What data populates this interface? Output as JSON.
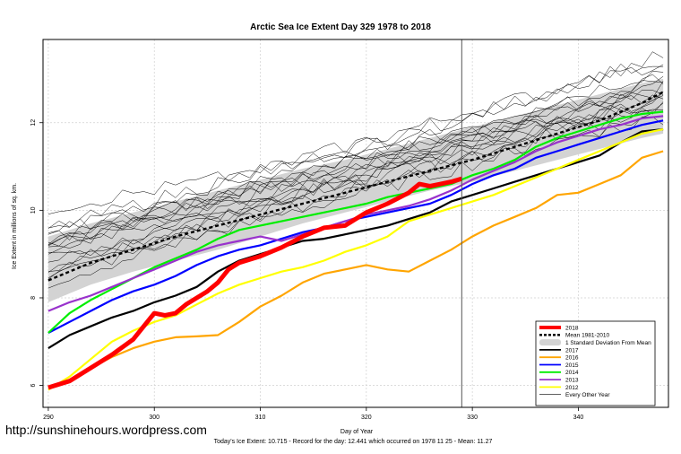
{
  "chart_data": {
    "type": "line",
    "title": "Arctic Sea Ice Extent Day 329 1978 to 2018",
    "xlabel": "Day of Year",
    "ylabel": "Ice Extent in millions of sq. km.",
    "xlim": [
      289.5,
      348.5
    ],
    "ylim": [
      5.5,
      13.9
    ],
    "x_ticks": [
      290,
      300,
      310,
      320,
      330,
      340
    ],
    "y_ticks": [
      6,
      8,
      10,
      12
    ],
    "grid": true,
    "legend_position": "bottom-right",
    "marker_day": 329,
    "watermark": "http://sunshinehours.wordpress.com",
    "footer": "Today's Ice Extent: 10.715  -  Record for the day: 12.441 which occurred on 1978 11 25  -  Mean: 11.27",
    "legend": [
      {
        "label": "2018",
        "color": "#ff0000",
        "style": "thick"
      },
      {
        "label": "Mean 1981-2010",
        "color": "#000000",
        "style": "dash"
      },
      {
        "label": "1 Standard Deviation From Mean",
        "color": "#d3d3d3",
        "style": "band"
      },
      {
        "label": "2017",
        "color": "#000000",
        "style": "line"
      },
      {
        "label": "2016",
        "color": "#ffa500",
        "style": "line"
      },
      {
        "label": "2015",
        "color": "#0000ff",
        "style": "line"
      },
      {
        "label": "2014",
        "color": "#00ee00",
        "style": "line"
      },
      {
        "label": "2013",
        "color": "#9932cc",
        "style": "line"
      },
      {
        "label": "2012",
        "color": "#ffff00",
        "style": "line"
      },
      {
        "label": "Every Other Year",
        "color": "#000000",
        "style": "thin"
      }
    ],
    "band": {
      "x": [
        290,
        294,
        298,
        302,
        306,
        310,
        314,
        318,
        322,
        326,
        330,
        334,
        338,
        342,
        346,
        348
      ],
      "upper": [
        9.4,
        9.7,
        9.95,
        10.2,
        10.45,
        10.7,
        10.95,
        11.15,
        11.4,
        11.65,
        11.9,
        12.15,
        12.4,
        12.65,
        12.9,
        13.0
      ],
      "lower": [
        7.9,
        8.3,
        8.6,
        8.85,
        9.1,
        9.4,
        9.7,
        9.95,
        10.2,
        10.45,
        10.65,
        10.9,
        11.15,
        11.4,
        11.65,
        11.75
      ]
    },
    "series": [
      {
        "name": "Mean 1981-2010",
        "color": "#000000",
        "x": [
          290,
          294,
          298,
          302,
          306,
          310,
          314,
          318,
          322,
          326,
          330,
          334,
          338,
          342,
          346,
          348
        ],
        "y": [
          8.4,
          8.8,
          9.1,
          9.4,
          9.65,
          9.9,
          10.15,
          10.4,
          10.65,
          10.9,
          11.15,
          11.45,
          11.75,
          12.05,
          12.45,
          12.7
        ]
      },
      {
        "name": "2017",
        "color": "#000000",
        "x": [
          290,
          292,
          294,
          296,
          298,
          300,
          302,
          304,
          306,
          308,
          310,
          312,
          314,
          316,
          318,
          320,
          322,
          324,
          326,
          328,
          330,
          332,
          334,
          336,
          338,
          340,
          342,
          344,
          346,
          348
        ],
        "y": [
          6.85,
          7.15,
          7.35,
          7.55,
          7.7,
          7.9,
          8.05,
          8.25,
          8.6,
          8.85,
          9.0,
          9.15,
          9.3,
          9.35,
          9.45,
          9.55,
          9.65,
          9.8,
          9.95,
          10.2,
          10.35,
          10.5,
          10.65,
          10.8,
          10.95,
          11.1,
          11.25,
          11.55,
          11.8,
          11.85
        ]
      },
      {
        "name": "2016",
        "color": "#ffa500",
        "x": [
          290,
          292,
          294,
          296,
          298,
          300,
          302,
          304,
          306,
          308,
          310,
          312,
          314,
          316,
          318,
          320,
          322,
          324,
          326,
          328,
          330,
          332,
          334,
          336,
          338,
          340,
          342,
          344,
          346,
          348
        ],
        "y": [
          5.95,
          6.1,
          6.4,
          6.65,
          6.85,
          7.0,
          7.1,
          7.12,
          7.15,
          7.45,
          7.8,
          8.05,
          8.35,
          8.55,
          8.65,
          8.75,
          8.65,
          8.6,
          8.85,
          9.1,
          9.4,
          9.65,
          9.85,
          10.05,
          10.35,
          10.4,
          10.6,
          10.8,
          11.2,
          11.35
        ]
      },
      {
        "name": "2015",
        "color": "#0000ff",
        "x": [
          290,
          292,
          294,
          296,
          298,
          300,
          302,
          304,
          306,
          308,
          310,
          312,
          314,
          316,
          318,
          320,
          322,
          324,
          326,
          328,
          330,
          332,
          334,
          336,
          338,
          340,
          342,
          344,
          346,
          348
        ],
        "y": [
          7.2,
          7.45,
          7.7,
          7.95,
          8.15,
          8.3,
          8.5,
          8.75,
          8.95,
          9.1,
          9.2,
          9.35,
          9.5,
          9.6,
          9.75,
          9.85,
          9.95,
          10.05,
          10.15,
          10.35,
          10.6,
          10.8,
          10.95,
          11.2,
          11.35,
          11.5,
          11.65,
          11.8,
          11.95,
          12.05
        ]
      },
      {
        "name": "2014",
        "color": "#00ee00",
        "x": [
          290,
          292,
          294,
          296,
          298,
          300,
          302,
          304,
          306,
          308,
          310,
          312,
          314,
          316,
          318,
          320,
          322,
          324,
          326,
          328,
          330,
          332,
          334,
          336,
          338,
          340,
          342,
          344,
          346,
          348
        ],
        "y": [
          7.2,
          7.65,
          7.95,
          8.2,
          8.45,
          8.7,
          8.9,
          9.1,
          9.35,
          9.55,
          9.65,
          9.75,
          9.85,
          9.95,
          10.05,
          10.15,
          10.3,
          10.4,
          10.5,
          10.6,
          10.8,
          10.95,
          11.15,
          11.45,
          11.65,
          11.8,
          11.95,
          12.1,
          12.2,
          12.25
        ]
      },
      {
        "name": "2013",
        "color": "#9932cc",
        "x": [
          290,
          292,
          294,
          296,
          298,
          300,
          302,
          304,
          306,
          308,
          310,
          312,
          314,
          316,
          318,
          320,
          322,
          324,
          326,
          328,
          330,
          332,
          334,
          336,
          338,
          340,
          342,
          344,
          346,
          348
        ],
        "y": [
          7.7,
          7.9,
          8.05,
          8.25,
          8.45,
          8.65,
          8.85,
          9.05,
          9.2,
          9.3,
          9.4,
          9.3,
          9.45,
          9.6,
          9.75,
          9.9,
          10.0,
          10.1,
          10.25,
          10.45,
          10.7,
          10.9,
          11.1,
          11.35,
          11.55,
          11.7,
          11.85,
          11.95,
          12.1,
          12.15
        ]
      },
      {
        "name": "2012",
        "color": "#ffff00",
        "x": [
          290,
          292,
          294,
          296,
          298,
          300,
          302,
          304,
          306,
          308,
          310,
          312,
          314,
          316,
          318,
          320,
          322,
          324,
          326,
          328,
          330,
          332,
          334,
          336,
          338,
          340,
          342,
          344,
          346,
          348
        ],
        "y": [
          5.9,
          6.2,
          6.6,
          7.0,
          7.25,
          7.45,
          7.6,
          7.85,
          8.1,
          8.3,
          8.45,
          8.6,
          8.7,
          8.85,
          9.05,
          9.2,
          9.4,
          9.75,
          9.9,
          10.05,
          10.2,
          10.35,
          10.55,
          10.75,
          10.95,
          11.15,
          11.35,
          11.55,
          11.75,
          11.85
        ]
      },
      {
        "name": "2018",
        "color": "#ff0000",
        "x": [
          290,
          292,
          294,
          296,
          298,
          299,
          300,
          301,
          302,
          303,
          305,
          306,
          307,
          308,
          310,
          312,
          314,
          316,
          318,
          320,
          322,
          324,
          325,
          326,
          327,
          328,
          329
        ],
        "y": [
          5.95,
          6.1,
          6.4,
          6.7,
          7.05,
          7.35,
          7.65,
          7.6,
          7.65,
          7.85,
          8.15,
          8.35,
          8.65,
          8.8,
          8.95,
          9.15,
          9.4,
          9.6,
          9.65,
          9.95,
          10.15,
          10.4,
          10.6,
          10.55,
          10.6,
          10.65,
          10.72
        ]
      }
    ]
  }
}
